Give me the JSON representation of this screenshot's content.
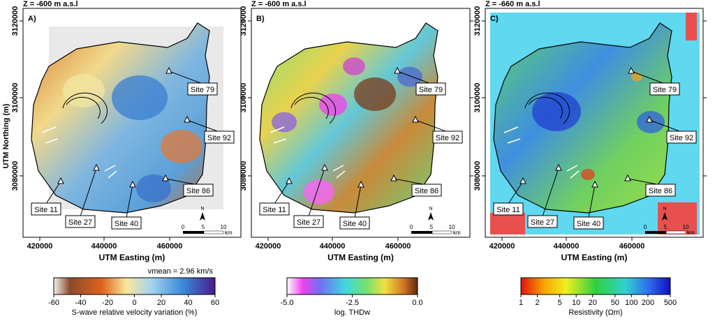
{
  "panels": [
    {
      "depth": "Z = -600 m a.s.l",
      "letter": "A)",
      "sites": [
        "Site 79",
        "Site 92",
        "Site 86",
        "Site 11",
        "Site 27",
        "Site 40"
      ]
    },
    {
      "depth": "Z = -600 m a.s.l",
      "letter": "B)",
      "sites": [
        "Site 79",
        "Site 92",
        "Site 86",
        "Site 11",
        "Site 27",
        "Site 40"
      ]
    },
    {
      "depth": "Z = -660 m a.s.l",
      "letter": "C)",
      "sites": [
        "Site 79",
        "Site 92",
        "Site 86",
        "Site 11",
        "Site 27",
        "Site 40"
      ]
    }
  ],
  "axes": {
    "y_label": "UTM Northing (m)",
    "x_label": "UTM Easting (m)",
    "y_ticks": [
      "3120000",
      "3100000",
      "3080000"
    ],
    "x_ticks": [
      "420000",
      "440000",
      "460000"
    ]
  },
  "scale_bar": {
    "north": "N",
    "ticks": [
      "0",
      "5",
      "10"
    ],
    "unit": "km"
  },
  "colorbars": [
    {
      "note": "vmean = 2.96 km/s",
      "ticks": [
        "-60",
        "-40",
        "-20",
        "0",
        "20",
        "40",
        "60"
      ],
      "title": "S-wave relative velocity variation (%)"
    },
    {
      "ticks": [
        "-5.0",
        "-2.5",
        "0.0"
      ],
      "title": "log. THDw"
    },
    {
      "ticks": [
        "1",
        "2",
        "5",
        "10",
        "20",
        "50",
        "100",
        "200",
        "500"
      ],
      "title": "Resistivity (Ωm)"
    }
  ]
}
